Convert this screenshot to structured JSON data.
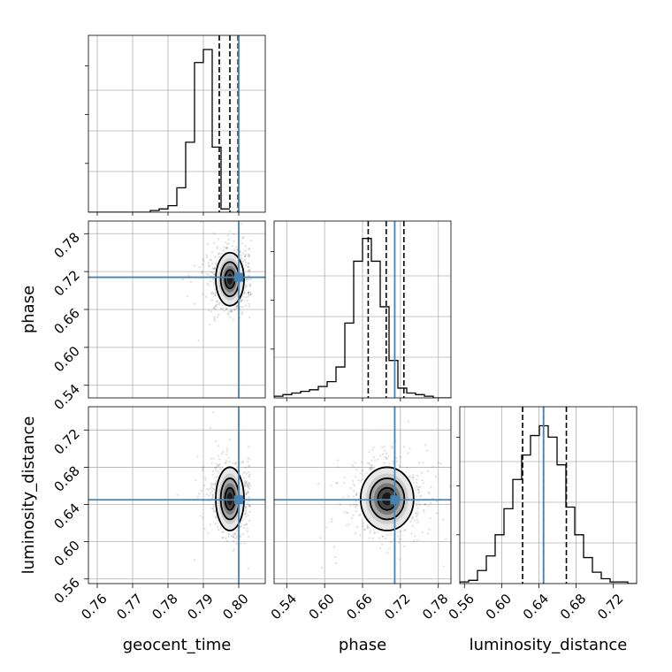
{
  "chart_data": {
    "type": "corner",
    "parameters": [
      {
        "name": "geocent_time",
        "label": "geocent_time",
        "range": [
          0.7575,
          0.8075
        ],
        "ticks": [
          0.76,
          0.77,
          0.78,
          0.79,
          0.8
        ],
        "tick_labels": [
          "0.76",
          "0.77",
          "0.78",
          "0.79",
          "0.80"
        ],
        "truth": 0.8,
        "quantiles": [
          0.7945,
          0.7975,
          0.7998
        ],
        "histogram": {
          "bin_width": 0.0025,
          "counts": [
            0,
            0,
            0,
            0,
            0,
            0,
            0,
            0.01,
            0.02,
            0.04,
            0.15,
            0.43,
            0.92,
            1.0,
            0.4,
            0.02
          ]
        }
      },
      {
        "name": "phase",
        "label": "phase",
        "range": [
          0.52,
          0.8
        ],
        "ticks": [
          0.54,
          0.6,
          0.66,
          0.72,
          0.78
        ],
        "tick_labels": [
          "0.54",
          "0.60",
          "0.66",
          "0.72",
          "0.78"
        ],
        "truth": 0.711,
        "quantiles": [
          0.669,
          0.6975,
          0.7255
        ],
        "histogram": {
          "bin_width": 0.014,
          "counts": [
            0.01,
            0.02,
            0.03,
            0.04,
            0.05,
            0.07,
            0.1,
            0.19,
            0.46,
            0.84,
            0.98,
            0.84,
            0.56,
            0.23,
            0.06,
            0.03,
            0.02,
            0.01,
            0,
            0
          ]
        }
      },
      {
        "name": "luminosity_distance",
        "label": "luminosity_distance",
        "range": [
          0.555,
          0.745
        ],
        "ticks": [
          0.56,
          0.6,
          0.64,
          0.68,
          0.72
        ],
        "tick_labels": [
          "0.56",
          "0.60",
          "0.64",
          "0.68",
          "0.72"
        ],
        "truth": 0.645,
        "quantiles": [
          0.6225,
          0.645,
          0.6695
        ],
        "histogram": {
          "bin_width": 0.0095,
          "counts": [
            0.01,
            0.02,
            0.08,
            0.17,
            0.3,
            0.46,
            0.64,
            0.79,
            0.91,
            0.97,
            0.9,
            0.73,
            0.47,
            0.3,
            0.16,
            0.07,
            0.03,
            0.01,
            0.01,
            0
          ]
        }
      }
    ],
    "pairs": [
      {
        "x": "geocent_time",
        "y": "phase",
        "center": [
          0.7975,
          0.708
        ],
        "sigma": [
          0.002,
          0.021
        ],
        "contour_levels_sigma": [
          0.7,
          1.3,
          2.0
        ],
        "truth": [
          0.8,
          0.711
        ]
      },
      {
        "x": "geocent_time",
        "y": "luminosity_distance",
        "center": [
          0.7975,
          0.646
        ],
        "sigma": [
          0.002,
          0.017
        ],
        "contour_levels_sigma": [
          0.7,
          1.3,
          2.0
        ],
        "truth": [
          0.8,
          0.645
        ]
      },
      {
        "x": "phase",
        "y": "luminosity_distance",
        "center": [
          0.699,
          0.646
        ],
        "sigma": [
          0.021,
          0.017
        ],
        "contour_levels_sigma": [
          0.7,
          1.3,
          2.0
        ],
        "truth": [
          0.711,
          0.645
        ]
      }
    ],
    "truth_color": "#4682b4",
    "grid": true
  }
}
